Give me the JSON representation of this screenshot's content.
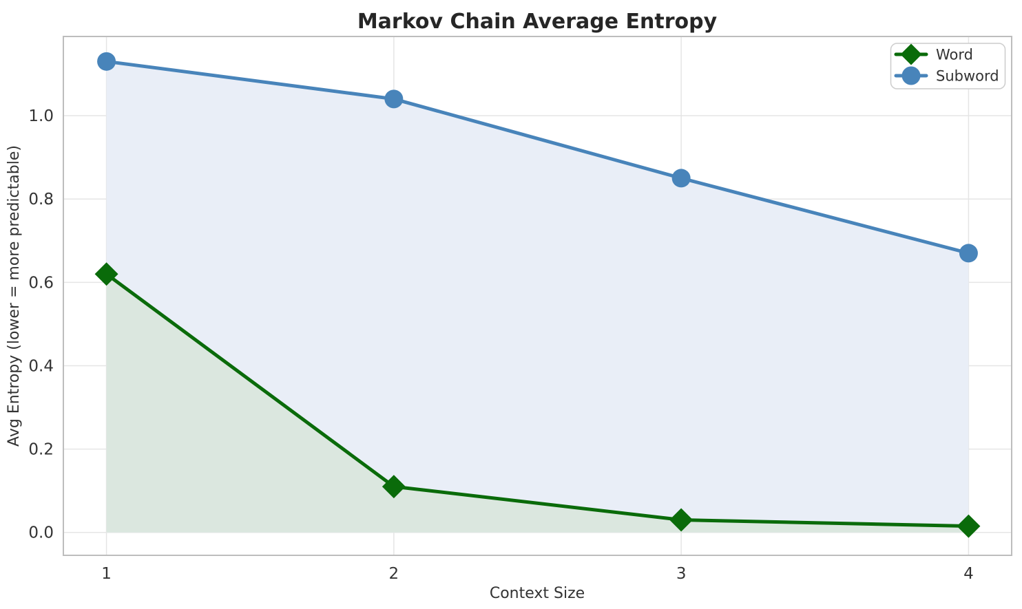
{
  "chart_data": {
    "type": "line",
    "title": "Markov Chain Average Entropy",
    "xlabel": "Context Size",
    "ylabel": "Avg Entropy (lower = more predictable)",
    "x": [
      1,
      2,
      3,
      4
    ],
    "xtick_labels": [
      "1",
      "2",
      "3",
      "4"
    ],
    "yticks": [
      0.0,
      0.2,
      0.4,
      0.6,
      0.8,
      1.0
    ],
    "ytick_labels": [
      "0.0",
      "0.2",
      "0.4",
      "0.6",
      "0.8",
      "1.0"
    ],
    "xlim": [
      0.85,
      4.15
    ],
    "ylim": [
      -0.055,
      1.19
    ],
    "grid": true,
    "legend_position": "upper right",
    "series": [
      {
        "name": "Word",
        "marker": "diamond",
        "color": "#0a6b0a",
        "fill_color": "#dbe7df",
        "values": [
          0.62,
          0.11,
          0.03,
          0.015
        ]
      },
      {
        "name": "Subword",
        "marker": "circle",
        "color": "#4884ba",
        "fill_color": "#e9eef7",
        "values": [
          1.13,
          1.04,
          0.85,
          0.67
        ]
      }
    ]
  }
}
